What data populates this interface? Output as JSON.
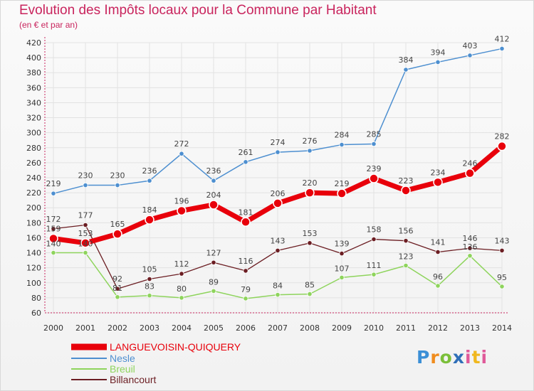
{
  "header": {
    "title": "Evolution des Impôts locaux pour la Commune par Habitant",
    "subtitle": "(en € et par an)"
  },
  "logo": {
    "text": "Proxiti",
    "letters": [
      "P",
      "r",
      "o",
      "x",
      "i",
      "t",
      "i"
    ]
  },
  "colors": {
    "title": "#c9245d",
    "axis": "#c9245d",
    "grid": "#e2e2e2",
    "languevoisin": "#e8000b",
    "nesle": "#4d8fd0",
    "breuil": "#8ed45c",
    "billancourt": "#6b1d22"
  },
  "chart_data": {
    "type": "line",
    "title": "Evolution des Impôts locaux pour la Commune par Habitant",
    "subtitle": "(en € et par an)",
    "xlabel": "",
    "ylabel": "",
    "ylim": [
      60,
      420
    ],
    "ytick_step": 20,
    "grid": true,
    "legend_position": "bottom-left",
    "x": [
      "2000",
      "2001",
      "2002",
      "2003",
      "2004",
      "2005",
      "2006",
      "2007",
      "2008",
      "2009",
      "2010",
      "2011",
      "2012",
      "2013",
      "2014"
    ],
    "series": [
      {
        "name": "LANGUEVOISIN-QUIQUERY",
        "key": "languevoisin",
        "values": [
          159,
          153,
          165,
          184,
          196,
          204,
          181,
          206,
          220,
          219,
          239,
          223,
          234,
          246,
          282
        ]
      },
      {
        "name": "Nesle",
        "key": "nesle",
        "values": [
          219,
          230,
          230,
          236,
          272,
          236,
          261,
          274,
          276,
          284,
          285,
          384,
          394,
          403,
          412
        ]
      },
      {
        "name": "Breuil",
        "key": "breuil",
        "values": [
          140,
          140,
          81,
          83,
          80,
          89,
          79,
          84,
          85,
          107,
          111,
          123,
          96,
          136,
          95
        ]
      },
      {
        "name": "Billancourt",
        "key": "billancourt",
        "values": [
          172,
          177,
          92,
          105,
          112,
          127,
          116,
          143,
          153,
          139,
          158,
          156,
          141,
          146,
          143
        ]
      }
    ]
  }
}
